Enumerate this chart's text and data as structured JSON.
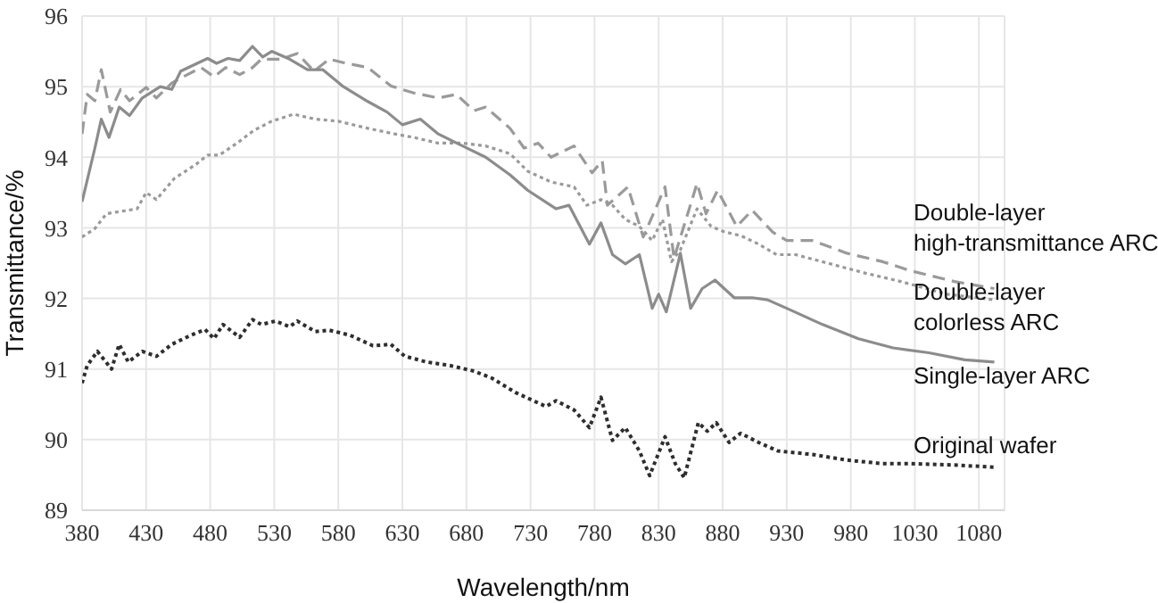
{
  "chart_data": {
    "type": "line",
    "xlabel": "Wavelength/nm",
    "ylabel": "Transmittance/%",
    "xlim": [
      380,
      1100
    ],
    "xticks": [
      380,
      430,
      480,
      530,
      580,
      630,
      680,
      730,
      780,
      830,
      880,
      930,
      980,
      1030,
      1080
    ],
    "ylim": [
      89,
      96
    ],
    "yticks": [
      89,
      90,
      91,
      92,
      93,
      94,
      95,
      96
    ],
    "grid": true,
    "marker": "none",
    "series": [
      {
        "name": "Double-layer high-transmittance ARC",
        "color": "#9a9a9a",
        "line_style": "dashed",
        "x": [
          380,
          384,
          390,
          395,
          402,
          410,
          417,
          430,
          438,
          450,
          459,
          473,
          483,
          492,
          503,
          513,
          520,
          535,
          548,
          561,
          573,
          584,
          603,
          621,
          639,
          658,
          672,
          686,
          695,
          714,
          725,
          736,
          746,
          764,
          778,
          786,
          790,
          806,
          818,
          835,
          842,
          860,
          867,
          876,
          891,
          903,
          919,
          930,
          950,
          977,
          1005,
          1027,
          1061,
          1092
        ],
        "values": [
          94.33,
          94.89,
          94.8,
          95.24,
          94.64,
          94.96,
          94.8,
          94.99,
          94.84,
          95.05,
          95.14,
          95.27,
          95.14,
          95.27,
          95.17,
          95.27,
          95.39,
          95.39,
          95.47,
          95.22,
          95.39,
          95.34,
          95.27,
          95.01,
          94.91,
          94.84,
          94.89,
          94.66,
          94.71,
          94.41,
          94.13,
          94.2,
          94.0,
          94.16,
          93.78,
          93.95,
          93.32,
          93.58,
          92.87,
          93.58,
          92.57,
          93.63,
          93.2,
          93.53,
          93.02,
          93.25,
          92.94,
          92.82,
          92.82,
          92.64,
          92.52,
          92.39,
          92.24,
          92.14
        ]
      },
      {
        "name": "Double-layer colorless ARC",
        "color": "#9a9a9a",
        "line_style": "dotted",
        "x": [
          380,
          390,
          399,
          409,
          423,
          430,
          438,
          452,
          469,
          478,
          487,
          501,
          514,
          528,
          545,
          562,
          580,
          603,
          624,
          639,
          658,
          677,
          695,
          714,
          728,
          746,
          764,
          774,
          785,
          794,
          804,
          815,
          825,
          833,
          840,
          847,
          860,
          871,
          882,
          894,
          908,
          922,
          937,
          964,
          991,
          1019,
          1055,
          1092
        ],
        "values": [
          92.87,
          92.99,
          93.2,
          93.23,
          93.27,
          93.5,
          93.4,
          93.7,
          93.9,
          94.03,
          94.03,
          94.2,
          94.38,
          94.51,
          94.61,
          94.54,
          94.51,
          94.41,
          94.33,
          94.28,
          94.2,
          94.2,
          94.16,
          94.05,
          93.8,
          93.65,
          93.58,
          93.32,
          93.4,
          93.32,
          93.12,
          93.02,
          92.82,
          93.12,
          92.52,
          92.69,
          93.27,
          93.02,
          92.94,
          92.89,
          92.77,
          92.62,
          92.62,
          92.49,
          92.36,
          92.24,
          92.06,
          91.98
        ]
      },
      {
        "name": "Single-layer ARC",
        "color": "#8c8c8c",
        "line_style": "solid",
        "x": [
          380,
          390,
          395,
          401,
          409,
          417,
          427,
          441,
          450,
          457,
          478,
          485,
          494,
          503,
          513,
          521,
          528,
          542,
          556,
          568,
          584,
          603,
          618,
          630,
          644,
          658,
          677,
          695,
          714,
          728,
          750,
          760,
          776,
          785,
          794,
          804,
          815,
          825,
          830,
          836,
          847,
          855,
          864,
          874,
          889,
          903,
          915,
          930,
          958,
          986,
          1013,
          1041,
          1069,
          1092
        ],
        "values": [
          93.37,
          94.13,
          94.54,
          94.28,
          94.71,
          94.59,
          94.84,
          95.0,
          94.96,
          95.22,
          95.4,
          95.33,
          95.4,
          95.37,
          95.57,
          95.42,
          95.5,
          95.39,
          95.24,
          95.24,
          95.0,
          94.79,
          94.64,
          94.46,
          94.54,
          94.33,
          94.16,
          94.0,
          93.75,
          93.53,
          93.27,
          93.32,
          92.77,
          93.07,
          92.62,
          92.49,
          92.62,
          91.86,
          92.06,
          91.81,
          92.64,
          91.86,
          92.14,
          92.26,
          92.01,
          92.01,
          91.98,
          91.86,
          91.63,
          91.43,
          91.3,
          91.23,
          91.13,
          91.1
        ]
      },
      {
        "name": "Original wafer",
        "color": "#2e2e2e",
        "line_style": "dotted",
        "x": [
          380,
          384,
          392,
          403,
          409,
          416,
          427,
          438,
          450,
          465,
          476,
          483,
          490,
          503,
          513,
          520,
          531,
          542,
          548,
          562,
          573,
          589,
          607,
          621,
          632,
          649,
          667,
          686,
          700,
          718,
          742,
          750,
          764,
          776,
          785,
          794,
          804,
          815,
          823,
          835,
          843,
          850,
          861,
          868,
          875,
          885,
          894,
          908,
          923,
          950,
          977,
          1005,
          1027,
          1061,
          1092
        ],
        "values": [
          90.8,
          91.05,
          91.25,
          91.0,
          91.35,
          91.1,
          91.25,
          91.18,
          91.35,
          91.48,
          91.56,
          91.43,
          91.63,
          91.45,
          91.7,
          91.63,
          91.68,
          91.6,
          91.68,
          91.53,
          91.55,
          91.48,
          91.33,
          91.35,
          91.18,
          91.1,
          91.05,
          90.97,
          90.87,
          90.67,
          90.47,
          90.55,
          90.42,
          90.17,
          90.6,
          89.99,
          90.17,
          89.84,
          89.49,
          90.04,
          89.66,
          89.46,
          90.24,
          90.12,
          90.24,
          89.96,
          90.09,
          89.96,
          89.84,
          89.79,
          89.71,
          89.66,
          89.66,
          89.64,
          89.61
        ]
      }
    ]
  }
}
